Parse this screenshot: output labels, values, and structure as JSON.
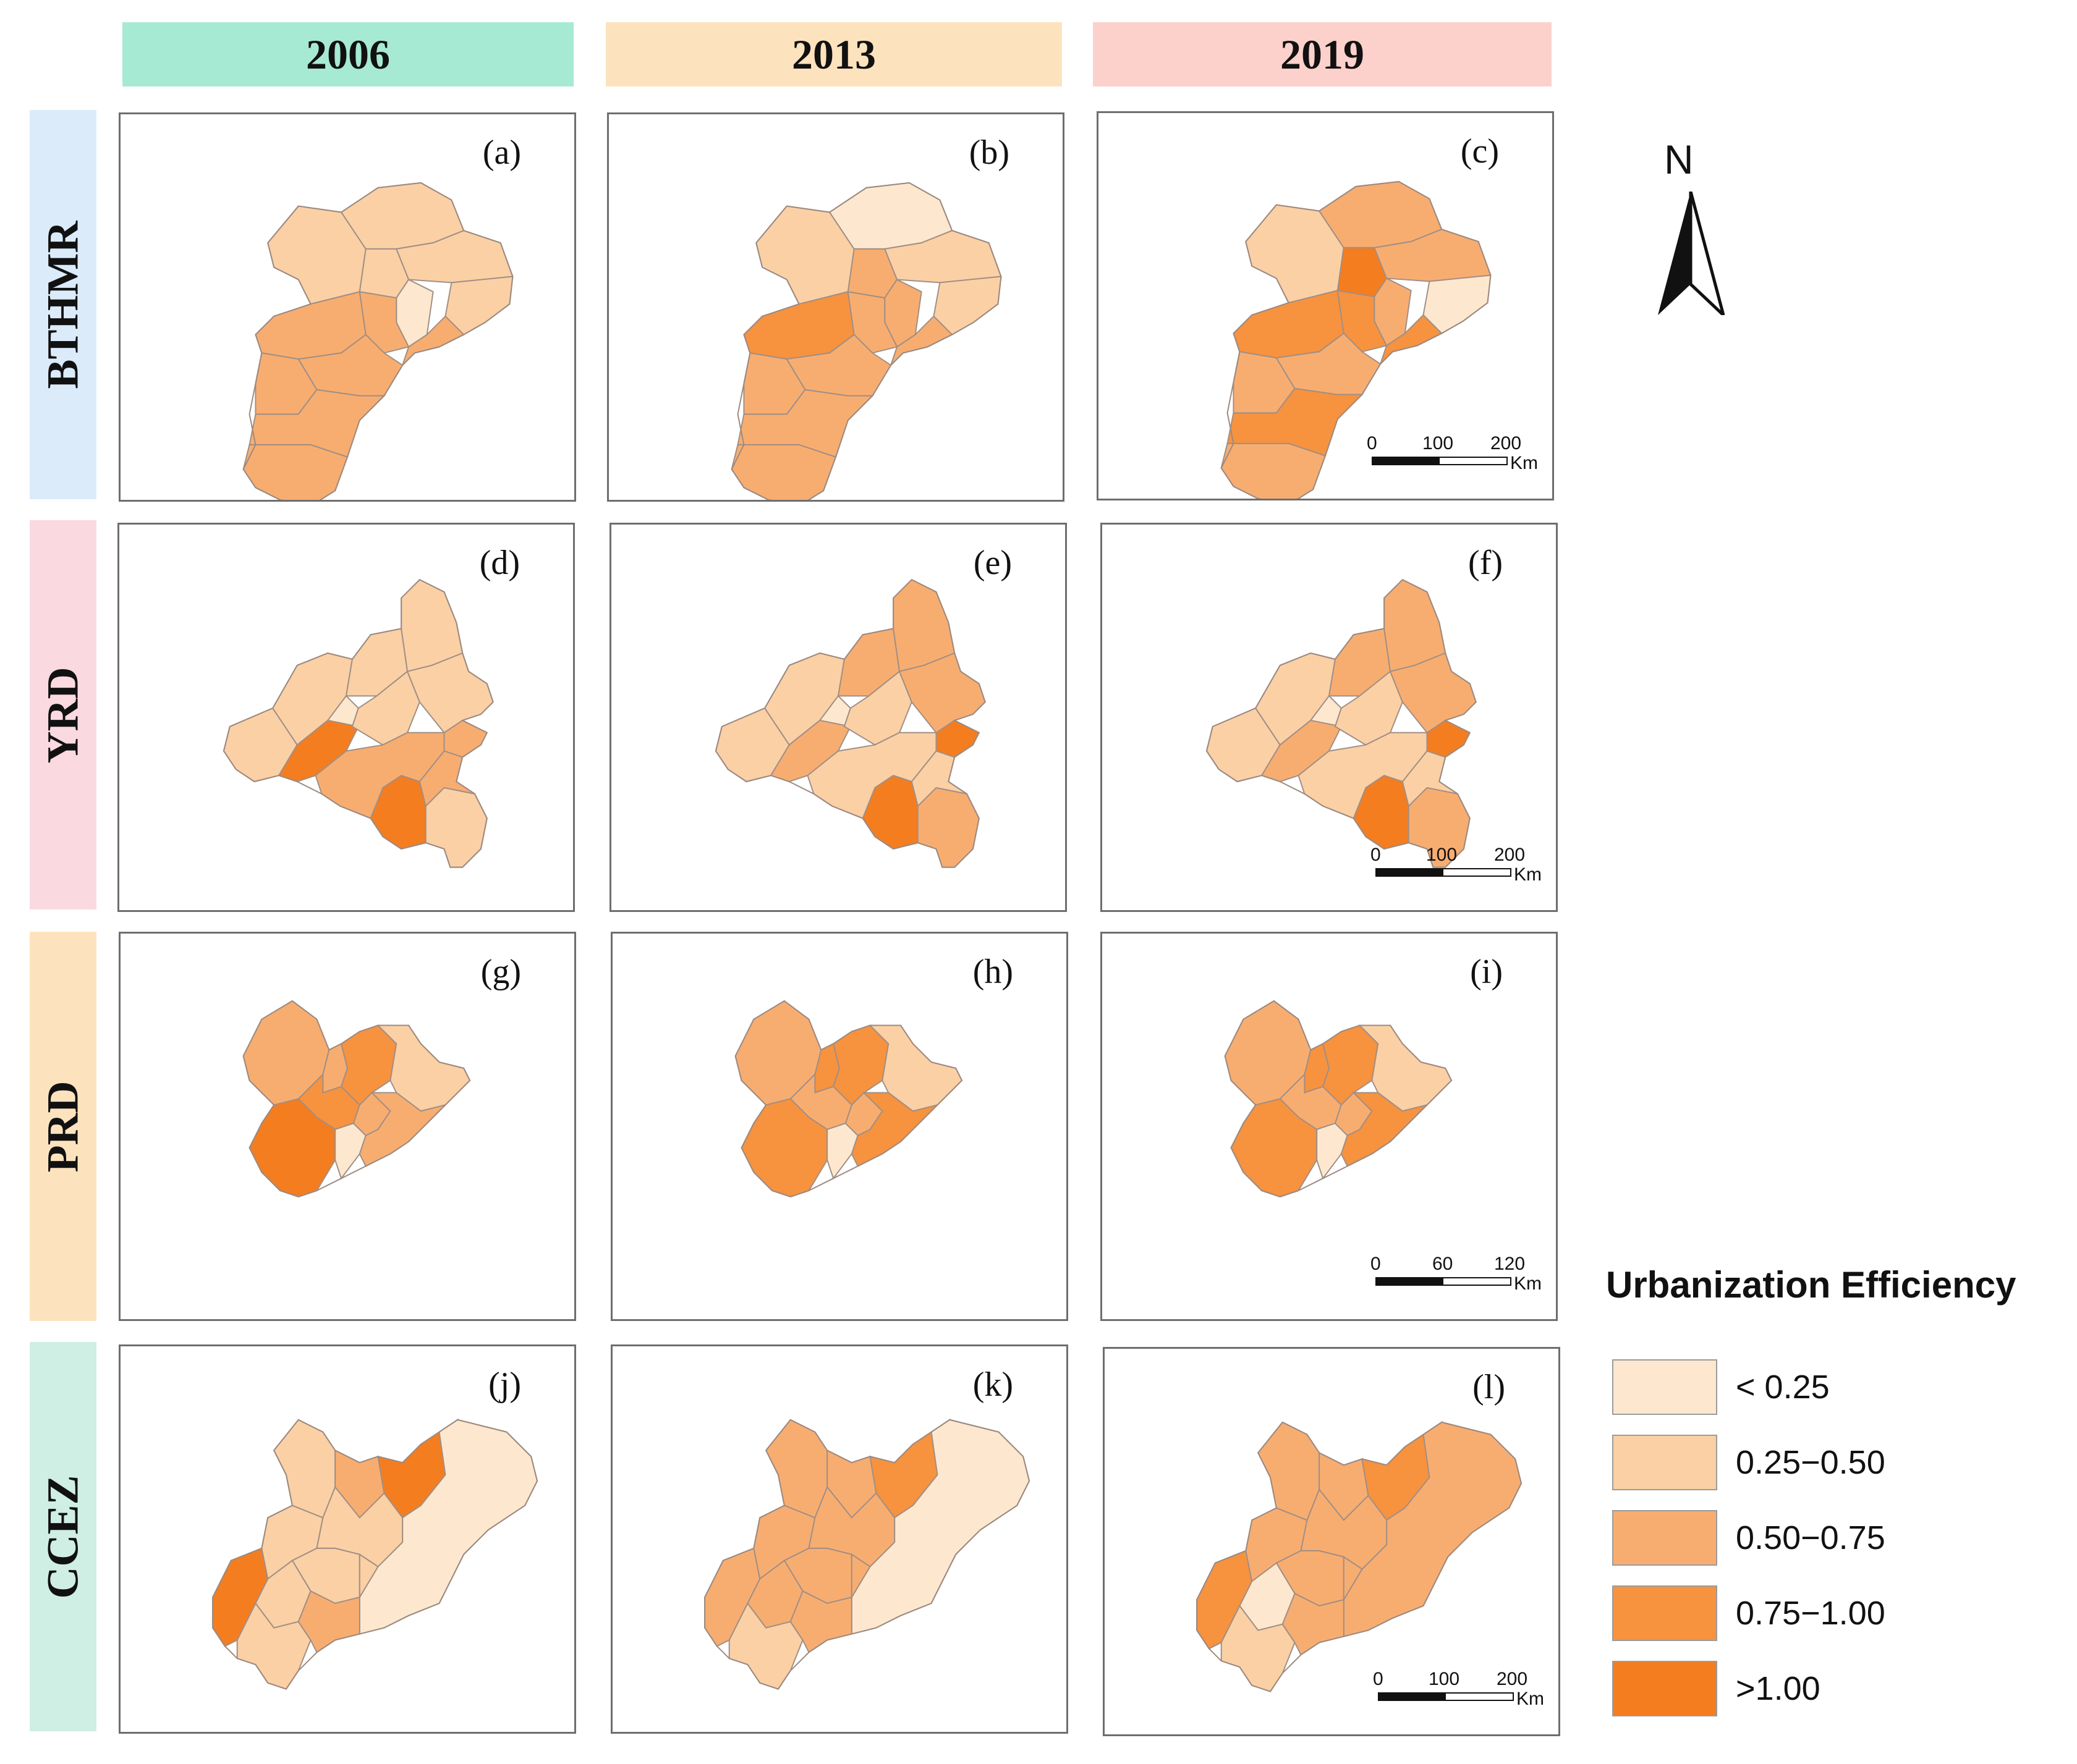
{
  "columns": [
    {
      "label": "2006",
      "color": "#a6ead4"
    },
    {
      "label": "2013",
      "color": "#fde3bd"
    },
    {
      "label": "2019",
      "color": "#fdd1cb"
    }
  ],
  "rows": [
    {
      "label": "BTHMR",
      "color": "#dcebfa"
    },
    {
      "label": "YRD",
      "color": "#fbd9e0"
    },
    {
      "label": "PRD",
      "color": "#fde3bd"
    },
    {
      "label": "CCEZ",
      "color": "#cfeee4"
    }
  ],
  "panels": [
    {
      "label": "(a)",
      "row": "BTHMR",
      "year": "2006",
      "fills": [
        "#fbd0a5",
        "#fbd0a5",
        "#fbd0a5",
        "#fbd0a5",
        "#fde8cf",
        "#f8ad70",
        "#f8ad70",
        "#f8ad70",
        "#f8ad70",
        "#fbd0a5",
        "#f8ad70",
        "#f8ad70",
        "#f8ad70"
      ]
    },
    {
      "label": "(b)",
      "row": "BTHMR",
      "year": "2013",
      "fills": [
        "#fbd0a5",
        "#fde8cf",
        "#f8ad70",
        "#fbd0a5",
        "#f8ad70",
        "#f7923f",
        "#f8ad70",
        "#f8ad70",
        "#f8ad70",
        "#fbd0a5",
        "#f8ad70",
        "#f8ad70",
        "#f8ad70"
      ]
    },
    {
      "label": "(c)",
      "row": "BTHMR",
      "year": "2019",
      "fills": [
        "#fbd0a5",
        "#f8ad70",
        "#f47d20",
        "#f8ad70",
        "#f8ad70",
        "#f7923f",
        "#f7923f",
        "#f8ad70",
        "#f8ad70",
        "#fde8cf",
        "#f7923f",
        "#f7923f",
        "#f8ad70"
      ]
    },
    {
      "label": "(d)",
      "row": "YRD",
      "year": "2006",
      "fills": [
        "#fbd0a5",
        "#fbd0a5",
        "#fbd0a5",
        "#fbd0a5",
        "#fde8cf",
        "#f47d20",
        "#fbd0a5",
        "#f8ad70",
        "#fbd0a5",
        "#f47d20",
        "#f8ad70",
        "#fbd0a5",
        "#f8ad70"
      ]
    },
    {
      "label": "(e)",
      "row": "YRD",
      "year": "2013",
      "fills": [
        "#fbd0a5",
        "#fbd0a5",
        "#f8ad70",
        "#f8ad70",
        "#fde8cf",
        "#f8ad70",
        "#fbd0a5",
        "#f47d20",
        "#f8ad70",
        "#f47d20",
        "#fbd0a5",
        "#f8ad70",
        "#fbd0a5"
      ]
    },
    {
      "label": "(f)",
      "row": "YRD",
      "year": "2019",
      "fills": [
        "#fbd0a5",
        "#fbd0a5",
        "#f8ad70",
        "#f8ad70",
        "#fde8cf",
        "#f8ad70",
        "#fbd0a5",
        "#f47d20",
        "#f8ad70",
        "#f47d20",
        "#fbd0a5",
        "#f8ad70",
        "#fbd0a5"
      ]
    },
    {
      "label": "(g)",
      "row": "PRD",
      "year": "2006",
      "fills": [
        "#f8ad70",
        "#f8ad70",
        "#f7923f",
        "#fbd0a5",
        "#f7923f",
        "#f47d20",
        "#fde8cf",
        "#f8ad70",
        "#f8ad70"
      ]
    },
    {
      "label": "(h)",
      "row": "PRD",
      "year": "2013",
      "fills": [
        "#f8ad70",
        "#f7923f",
        "#f7923f",
        "#fbd0a5",
        "#f8ad70",
        "#f7923f",
        "#fde8cf",
        "#f8ad70",
        "#f7923f"
      ]
    },
    {
      "label": "(i)",
      "row": "PRD",
      "year": "2019",
      "fills": [
        "#f8ad70",
        "#f7923f",
        "#f7923f",
        "#fbd0a5",
        "#f8ad70",
        "#f7923f",
        "#fde8cf",
        "#f8ad70",
        "#f7923f"
      ]
    },
    {
      "label": "(j)",
      "row": "CCEZ",
      "year": "2006",
      "fills": [
        "#f47d20",
        "#fbd0a5",
        "#fbd0a5",
        "#f8ad70",
        "#f47d20",
        "#fde8cf",
        "#fbd0a5",
        "#fbd0a5",
        "#fbd0a5",
        "#fbd0a5",
        "#f8ad70",
        "#fbd0a5"
      ]
    },
    {
      "label": "(k)",
      "row": "CCEZ",
      "year": "2013",
      "fills": [
        "#f8ad70",
        "#f8ad70",
        "#f8ad70",
        "#f8ad70",
        "#f7923f",
        "#fde8cf",
        "#f8ad70",
        "#f8ad70",
        "#f8ad70",
        "#fbd0a5",
        "#f8ad70",
        "#f8ad70"
      ]
    },
    {
      "label": "(l)",
      "row": "CCEZ",
      "year": "2019",
      "fills": [
        "#f7923f",
        "#f8ad70",
        "#f8ad70",
        "#f8ad70",
        "#f7923f",
        "#f8ad70",
        "#f8ad70",
        "#f8ad70",
        "#fde8cf",
        "#fbd0a5",
        "#f8ad70",
        "#f8ad70"
      ]
    }
  ],
  "scalebars": [
    {
      "row": "BTHMR",
      "ticks": [
        "0",
        "100",
        "200"
      ],
      "unit": "Km"
    },
    {
      "row": "YRD",
      "ticks": [
        "0",
        "100",
        "200"
      ],
      "unit": "Km"
    },
    {
      "row": "PRD",
      "ticks": [
        "0",
        "60",
        "120"
      ],
      "unit": "Km"
    },
    {
      "row": "CCEZ",
      "ticks": [
        "0",
        "100",
        "200"
      ],
      "unit": "Km"
    }
  ],
  "north_arrow": {
    "label": "N"
  },
  "legend": {
    "title": "Urbanization Efficiency",
    "items": [
      {
        "label": "< 0.25",
        "color": "#fde8cf"
      },
      {
        "label": "0.25−0.50",
        "color": "#fbd0a5"
      },
      {
        "label": "0.50−0.75",
        "color": "#f8ad70"
      },
      {
        "label": "0.75−1.00",
        "color": "#f7923f"
      },
      {
        "label": ">1.00",
        "color": "#f47d20"
      }
    ]
  }
}
